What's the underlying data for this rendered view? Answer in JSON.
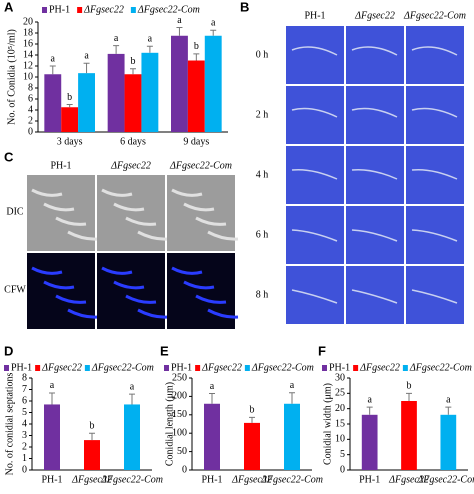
{
  "panels": {
    "labels": [
      "A",
      "B",
      "C",
      "D",
      "E",
      "F"
    ]
  },
  "image_panels": {
    "B": {
      "columns": [
        "PH-1",
        "ΔFgsec22",
        "ΔFgsec22-Com"
      ],
      "rows": [
        "0 h",
        "2 h",
        "4 h",
        "6 h",
        "8 h"
      ]
    },
    "C": {
      "columns": [
        "PH-1",
        "ΔFgsec22",
        "ΔFgsec22-Com"
      ],
      "rows": [
        "DIC",
        "CFW"
      ]
    }
  },
  "chart_data": [
    {
      "type": "bar",
      "ylabel": "No. of Conidia (10⁵/ml)",
      "categories": [
        "3 days",
        "6 days",
        "9 days"
      ],
      "series": [
        {
          "name": "PH-1",
          "color": "#7030a0",
          "values": [
            10.5,
            14.2,
            17.5
          ],
          "errors": [
            1.5,
            1.5,
            1.5
          ],
          "letters": [
            "a",
            "a",
            "a"
          ]
        },
        {
          "name": "ΔFgsec22",
          "color": "#ff0000",
          "values": [
            4.5,
            10.5,
            13
          ],
          "errors": [
            0.5,
            1,
            1.2
          ],
          "letters": [
            "b",
            "b",
            "b"
          ]
        },
        {
          "name": "ΔFgsec22-Com",
          "color": "#00b0f0",
          "values": [
            10.7,
            14.4,
            17.5
          ],
          "errors": [
            1.8,
            1.2,
            1
          ],
          "letters": [
            "a",
            "a",
            "a"
          ]
        }
      ],
      "ylim": [
        0,
        20
      ],
      "yticks": [
        0,
        2,
        4,
        6,
        8,
        10,
        12,
        14,
        16,
        18,
        20
      ]
    },
    {
      "type": "bar",
      "ylabel": "No. of conidial septations",
      "categories": [
        "PH-1",
        "ΔFgsec22",
        "ΔFgsec22-Com"
      ],
      "values": [
        5.7,
        2.6,
        5.7
      ],
      "errors": [
        1,
        0.6,
        0.9
      ],
      "letters": [
        "a",
        "b",
        "a"
      ],
      "colors": [
        "#7030a0",
        "#ff0000",
        "#00b0f0"
      ],
      "ylim": [
        0,
        8
      ],
      "yticks": [
        0,
        1,
        2,
        3,
        4,
        5,
        6,
        7,
        8
      ]
    },
    {
      "type": "bar",
      "ylabel": "Conidial length (μm)",
      "categories": [
        "PH-1",
        "ΔFgsec22",
        "ΔFgsec22-Com"
      ],
      "values": [
        180,
        128,
        180
      ],
      "errors": [
        28,
        15,
        30
      ],
      "letters": [
        "a",
        "b",
        "a"
      ],
      "colors": [
        "#7030a0",
        "#ff0000",
        "#00b0f0"
      ],
      "ylim": [
        0,
        250
      ],
      "yticks": [
        0,
        50,
        100,
        150,
        200,
        250
      ]
    },
    {
      "type": "bar",
      "ylabel": "Conidial width (μm)",
      "categories": [
        "PH-1",
        "ΔFgsec22",
        "ΔFgsec22-Com"
      ],
      "values": [
        18,
        22.5,
        18
      ],
      "errors": [
        2.5,
        2.5,
        2.5
      ],
      "letters": [
        "a",
        "b",
        "a"
      ],
      "colors": [
        "#7030a0",
        "#ff0000",
        "#00b0f0"
      ],
      "ylim": [
        0,
        30
      ],
      "yticks": [
        0,
        5,
        10,
        15,
        20,
        25,
        30
      ]
    }
  ]
}
